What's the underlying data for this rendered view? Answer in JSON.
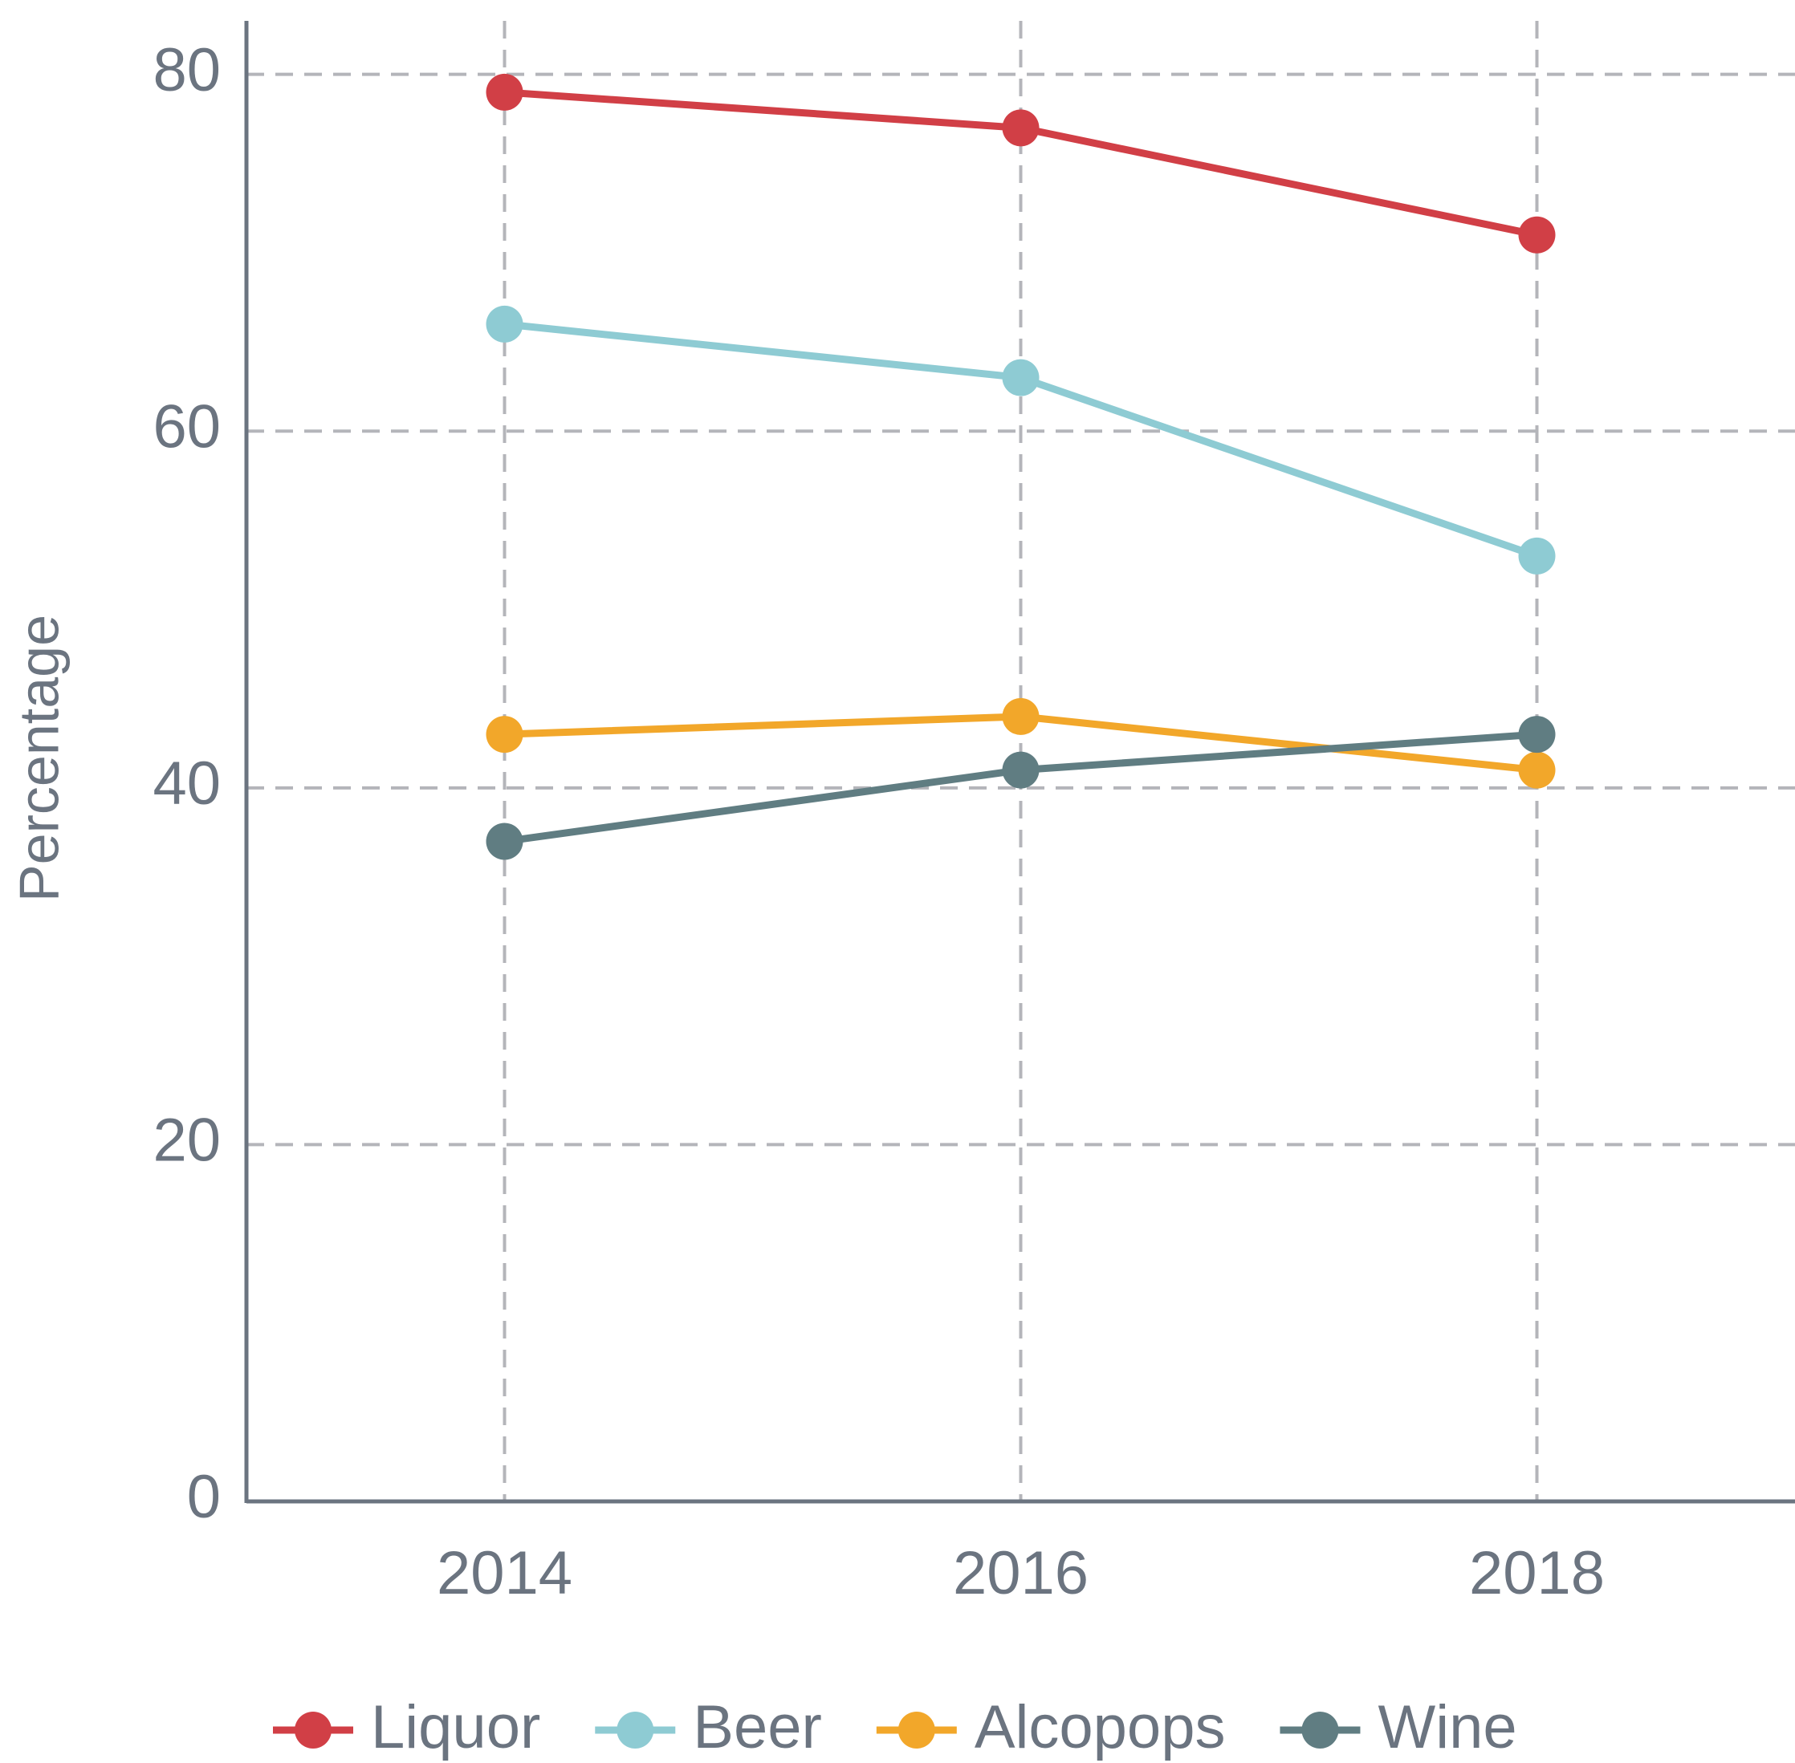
{
  "chart_data": {
    "type": "line",
    "y_label": "Percentage",
    "x": [
      2014,
      2016,
      2018
    ],
    "xlim": [
      2013,
      2019
    ],
    "xticks": [
      2014,
      2016,
      2018
    ],
    "ylim": [
      0,
      83
    ],
    "yticks": [
      0,
      20,
      40,
      60,
      80
    ],
    "grid": true,
    "legend": "bottom",
    "series": [
      {
        "name": "Liquor",
        "color": "#d13f46",
        "values": [
          79,
          77,
          71
        ]
      },
      {
        "name": "Beer",
        "color": "#8ecbd3",
        "values": [
          66,
          63,
          53
        ]
      },
      {
        "name": "Alcopops",
        "color": "#f2a72a",
        "values": [
          43,
          44,
          41
        ]
      },
      {
        "name": "Wine",
        "color": "#607d82",
        "values": [
          37,
          41,
          43
        ]
      }
    ]
  }
}
